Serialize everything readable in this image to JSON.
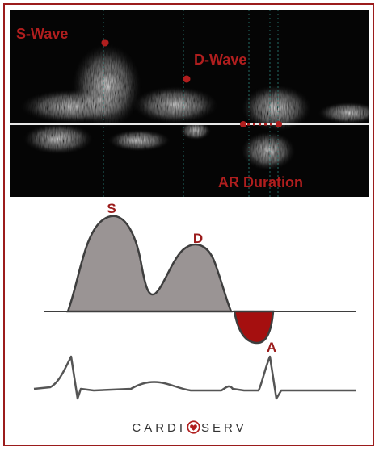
{
  "doppler_labels": {
    "s_wave": "S-Wave",
    "d_wave": "D-Wave",
    "ar_duration": "AR Duration"
  },
  "diagram_labels": {
    "s": "S",
    "d": "D",
    "a": "A"
  },
  "brand": {
    "left": "CARDI",
    "right": "SERV"
  },
  "colors": {
    "accent_red": "#b01e1e",
    "border_red": "#9b1c1c",
    "wave_fill_gray": "#9a9494",
    "a_wave_fill": "#a50f0f",
    "text_dark": "#333333"
  }
}
